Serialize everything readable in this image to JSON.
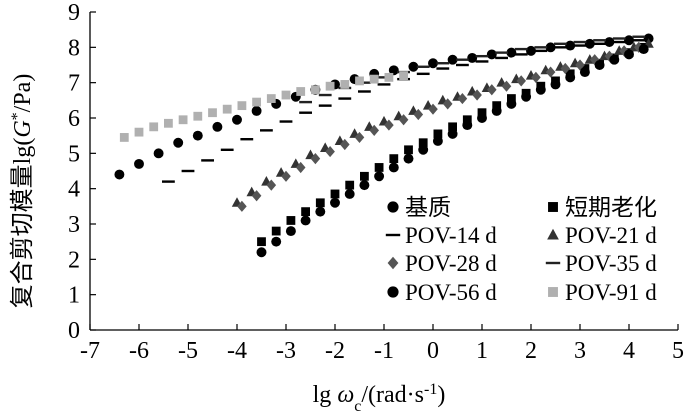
{
  "chart_data": {
    "type": "scatter",
    "xlabel_parts": [
      "lg ",
      "ω",
      "c",
      "/(rad·s",
      "-1",
      ")"
    ],
    "ylabel_parts": [
      "复合剪切模量lg(",
      "G",
      "*",
      "/Pa)"
    ],
    "xlim": [
      -7,
      5
    ],
    "ylim": [
      0,
      9
    ],
    "x_ticks": [
      "-7",
      "-6",
      "-5",
      "-4",
      "-3",
      "-2",
      "-1",
      "0",
      "1",
      "2",
      "3",
      "4",
      "5"
    ],
    "y_ticks": [
      "0",
      "1",
      "2",
      "3",
      "4",
      "5",
      "6",
      "7",
      "8",
      "9"
    ],
    "grid": false,
    "legend_position": "lower-right",
    "series": [
      {
        "name": "基质",
        "marker": "circle",
        "color": "#000000",
        "x": [
          -6.4,
          -6.0,
          -5.6,
          -5.2,
          -4.8,
          -4.4,
          -4.0,
          -3.6,
          -3.2,
          -2.8,
          -2.4,
          -2.0,
          -1.6,
          -1.2,
          -0.8,
          -0.4,
          0.0,
          0.4,
          0.8,
          1.2,
          1.6,
          2.0,
          2.4,
          2.8,
          3.2,
          3.6,
          4.0,
          4.4
        ],
        "y": [
          4.4,
          4.7,
          5.0,
          5.3,
          5.5,
          5.75,
          5.95,
          6.2,
          6.4,
          6.6,
          6.8,
          6.95,
          7.1,
          7.25,
          7.35,
          7.45,
          7.55,
          7.65,
          7.7,
          7.8,
          7.85,
          7.9,
          8.0,
          8.05,
          8.1,
          8.15,
          8.2,
          8.25
        ]
      },
      {
        "name": "短期老化",
        "marker": "square",
        "color": "#000000",
        "x": [
          -3.5,
          -3.2,
          -2.9,
          -2.6,
          -2.3,
          -2.0,
          -1.7,
          -1.4,
          -1.1,
          -0.8,
          -0.5,
          -0.2,
          0.1,
          0.4,
          0.7,
          1.0,
          1.3,
          1.6,
          1.9,
          2.2,
          2.5,
          2.8,
          3.1,
          3.4,
          3.7,
          4.0,
          4.3
        ],
        "y": [
          2.5,
          2.8,
          3.1,
          3.35,
          3.6,
          3.85,
          4.1,
          4.35,
          4.6,
          4.85,
          5.1,
          5.3,
          5.55,
          5.75,
          5.95,
          6.15,
          6.35,
          6.55,
          6.7,
          6.9,
          7.05,
          7.25,
          7.4,
          7.55,
          7.7,
          7.85,
          8.0
        ]
      },
      {
        "name": "POV-14 d",
        "marker": "dash",
        "color": "#000000",
        "x": [
          -5.4,
          -5.0,
          -4.6,
          -4.2,
          -3.8,
          -3.4,
          -3.0,
          -2.6,
          -2.2,
          -1.8,
          -1.4,
          -1.0,
          -0.6,
          -0.2,
          0.2,
          0.6,
          1.0,
          1.4,
          1.8,
          2.2,
          2.6,
          3.0,
          3.4,
          3.8,
          4.2
        ],
        "y": [
          4.2,
          4.5,
          4.8,
          5.1,
          5.4,
          5.65,
          5.9,
          6.15,
          6.35,
          6.55,
          6.75,
          6.95,
          7.1,
          7.25,
          7.4,
          7.5,
          7.6,
          7.7,
          7.8,
          7.9,
          8.0,
          8.05,
          8.1,
          8.15,
          8.2
        ]
      },
      {
        "name": "POV-21 d",
        "marker": "triangle",
        "color": "#333333",
        "x": [
          -4.0,
          -3.7,
          -3.4,
          -3.1,
          -2.8,
          -2.5,
          -2.2,
          -1.9,
          -1.6,
          -1.3,
          -1.0,
          -0.7,
          -0.4,
          -0.1,
          0.2,
          0.5,
          0.8,
          1.1,
          1.4,
          1.7,
          2.0,
          2.3,
          2.6,
          2.9,
          3.2,
          3.5,
          3.8,
          4.1,
          4.4
        ],
        "y": [
          3.6,
          3.9,
          4.2,
          4.45,
          4.7,
          4.95,
          5.15,
          5.35,
          5.55,
          5.75,
          5.9,
          6.05,
          6.2,
          6.35,
          6.5,
          6.6,
          6.75,
          6.85,
          7.0,
          7.1,
          7.2,
          7.35,
          7.45,
          7.55,
          7.65,
          7.75,
          7.9,
          8.0,
          8.1
        ]
      },
      {
        "name": "POV-28 d",
        "marker": "diamond",
        "color": "#555555",
        "x": [
          -3.9,
          -3.6,
          -3.3,
          -3.0,
          -2.7,
          -2.4,
          -2.1,
          -1.8,
          -1.5,
          -1.2,
          -0.9,
          -0.6,
          -0.3,
          0.0,
          0.3,
          0.6,
          0.9,
          1.2,
          1.5,
          1.8,
          2.1,
          2.4,
          2.7,
          3.0,
          3.3,
          3.6,
          3.9,
          4.2
        ],
        "y": [
          3.5,
          3.8,
          4.1,
          4.35,
          4.6,
          4.85,
          5.05,
          5.25,
          5.45,
          5.65,
          5.8,
          5.95,
          6.1,
          6.25,
          6.4,
          6.55,
          6.65,
          6.8,
          6.9,
          7.05,
          7.15,
          7.3,
          7.4,
          7.5,
          7.65,
          7.75,
          7.9,
          8.0
        ]
      },
      {
        "name": "POV-35 d",
        "marker": "dash",
        "color": "#222222",
        "x": [
          -2.6,
          -2.2,
          -1.8,
          -1.4,
          -1.0,
          -0.6,
          -0.2,
          0.2,
          0.6,
          1.0,
          1.4,
          1.8,
          2.2,
          2.6,
          3.0,
          3.4,
          3.8,
          4.2
        ],
        "y": [
          6.45,
          6.65,
          6.85,
          7.0,
          7.15,
          7.3,
          7.45,
          7.55,
          7.65,
          7.75,
          7.85,
          7.95,
          8.0,
          8.1,
          8.15,
          8.2,
          8.25,
          8.3
        ]
      },
      {
        "name": "POV-56 d",
        "marker": "circle",
        "color": "#000000",
        "x": [
          -3.5,
          -3.2,
          -2.9,
          -2.6,
          -2.3,
          -2.0,
          -1.7,
          -1.4,
          -1.1,
          -0.8,
          -0.5,
          -0.2,
          0.1,
          0.4,
          0.7,
          1.0,
          1.3,
          1.6,
          1.9,
          2.2,
          2.5,
          2.8,
          3.1,
          3.4,
          3.7,
          4.0,
          4.3
        ],
        "y": [
          2.2,
          2.5,
          2.8,
          3.1,
          3.35,
          3.6,
          3.85,
          4.1,
          4.35,
          4.6,
          4.85,
          5.1,
          5.35,
          5.55,
          5.8,
          6.0,
          6.2,
          6.4,
          6.6,
          6.8,
          6.95,
          7.15,
          7.3,
          7.5,
          7.65,
          7.8,
          7.95
        ]
      },
      {
        "name": "POV-91 d",
        "marker": "square",
        "color": "#b0b0b0",
        "x": [
          -6.3,
          -6.0,
          -5.7,
          -5.4,
          -5.1,
          -4.8,
          -4.5,
          -4.2,
          -3.9,
          -3.6,
          -3.3,
          -3.0,
          -2.7,
          -2.4,
          -2.1,
          -1.8,
          -1.5,
          -1.2,
          -0.9,
          -0.6
        ],
        "y": [
          5.45,
          5.6,
          5.75,
          5.85,
          5.95,
          6.05,
          6.15,
          6.25,
          6.35,
          6.45,
          6.55,
          6.65,
          6.75,
          6.8,
          6.9,
          6.95,
          7.05,
          7.1,
          7.15,
          7.2
        ]
      }
    ]
  }
}
